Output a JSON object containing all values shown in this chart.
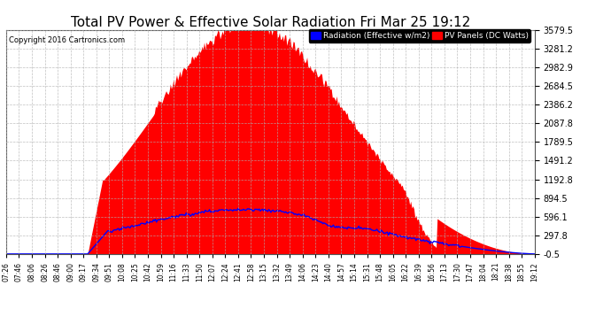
{
  "title": "Total PV Power & Effective Solar Radiation Fri Mar 25 19:12",
  "title_fontsize": 11,
  "copyright_text": "Copyright 2016 Cartronics.com",
  "legend_labels": [
    "Radiation (Effective w/m2)",
    "PV Panels (DC Watts)"
  ],
  "legend_colors": [
    "#0000ff",
    "#ff0000"
  ],
  "yticks": [
    -0.5,
    297.8,
    596.1,
    894.5,
    1192.8,
    1491.2,
    1789.5,
    2087.8,
    2386.2,
    2684.5,
    2982.9,
    3281.2,
    3579.5
  ],
  "ylim": [
    -0.5,
    3579.5
  ],
  "background_color": "#ffffff",
  "plot_bg_color": "#ffffff",
  "grid_color": "#b0b0b0",
  "red_fill_color": "#ff0000",
  "blue_line_color": "#0000ff",
  "time_labels": [
    "07:26",
    "07:46",
    "08:06",
    "08:26",
    "08:46",
    "09:00",
    "09:17",
    "09:34",
    "09:51",
    "10:08",
    "10:25",
    "10:42",
    "10:59",
    "11:16",
    "11:33",
    "11:50",
    "12:07",
    "12:24",
    "12:41",
    "12:58",
    "13:15",
    "13:32",
    "13:49",
    "14:06",
    "14:23",
    "14:40",
    "14:57",
    "15:14",
    "15:31",
    "15:48",
    "16:05",
    "16:22",
    "16:39",
    "16:56",
    "17:13",
    "17:30",
    "17:47",
    "18:04",
    "18:21",
    "18:38",
    "18:55",
    "19:12"
  ]
}
